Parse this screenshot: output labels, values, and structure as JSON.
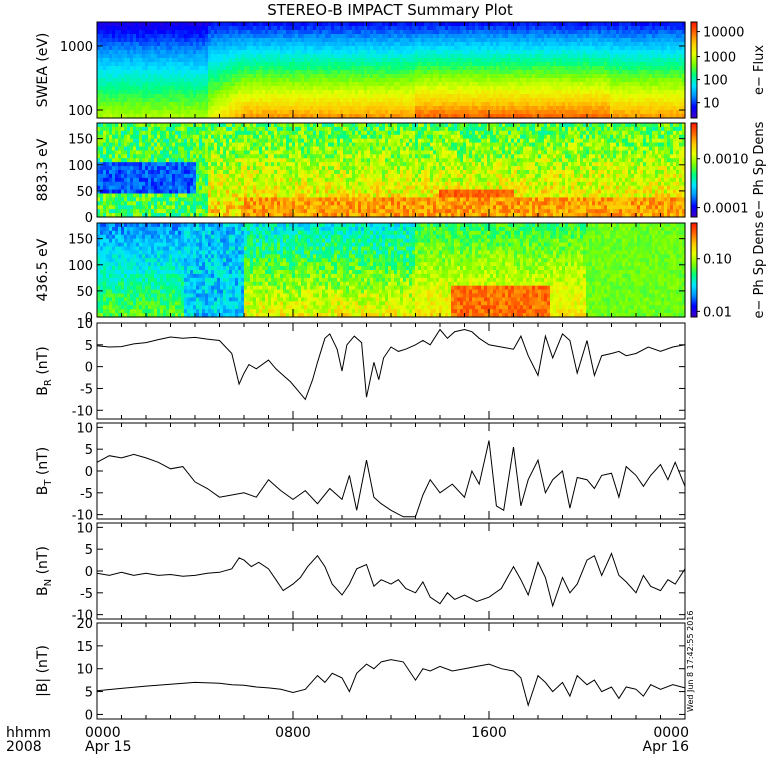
{
  "title": "STEREO-B IMPACT Summary Plot",
  "timestamp_stamp": "Wed Jun  8 17:42:55 2016",
  "time_axis": {
    "label_line1": "hhmm",
    "label_line2": "2008",
    "ticks": [
      {
        "t": 0,
        "hhmm": "0000",
        "date": "Apr 15"
      },
      {
        "t": 8,
        "hhmm": "0800",
        "date": ""
      },
      {
        "t": 16,
        "hhmm": "1600",
        "date": ""
      },
      {
        "t": 24,
        "hhmm": "0000",
        "date": "Apr 16"
      }
    ]
  },
  "colors": {
    "spectrogram_palette": [
      "#3f00c8",
      "#0000ff",
      "#0090ff",
      "#00e6ff",
      "#00ff80",
      "#7fff00",
      "#e6ff00",
      "#ffc800",
      "#ff6400",
      "#ff1400"
    ],
    "line": "#000000"
  },
  "chart_data": [
    {
      "id": "swea",
      "type": "heatmap",
      "ylabel": "SWEA (eV)",
      "yscale": "log",
      "yticks": [
        "100",
        "1000"
      ],
      "colorbar": {
        "label": "e− Flux",
        "scale": "log",
        "ticks": [
          "10",
          "100",
          "1000",
          "10000"
        ]
      },
      "description_rows": "energy",
      "x_hours": [
        0,
        2,
        4,
        5,
        6,
        8,
        10,
        12,
        14,
        16,
        18,
        20,
        22,
        24
      ]
    },
    {
      "id": "pad883",
      "type": "heatmap",
      "ylabel": "883.3 eV",
      "ylim": [
        0,
        180
      ],
      "yticks": [
        "0",
        "50",
        "100",
        "150"
      ],
      "colorbar": {
        "label": "e− Ph Sp Dens",
        "scale": "log",
        "ticks": [
          "0.0001",
          "0.0010"
        ]
      }
    },
    {
      "id": "pad436",
      "type": "heatmap",
      "ylabel": "436.5 eV",
      "ylim": [
        0,
        180
      ],
      "yticks": [
        "0",
        "50",
        "100",
        "150"
      ],
      "colorbar": {
        "label": "e− Ph Sp Dens",
        "scale": "log",
        "ticks": [
          "0.01",
          "0.10"
        ]
      }
    },
    {
      "id": "br",
      "type": "line",
      "ylabel": "B",
      "ylabel_sub": "R",
      "ylabel_unit": "(nT)",
      "ylim": [
        -12,
        10
      ],
      "yticks": [
        "-10",
        "-5",
        "0",
        "5",
        "10"
      ],
      "x": [
        0,
        0.5,
        1,
        1.5,
        2,
        2.5,
        3,
        3.5,
        4,
        4.5,
        5,
        5.5,
        5.8,
        6,
        6.2,
        6.5,
        7,
        7.3,
        7.6,
        7.9,
        8.2,
        8.5,
        8.8,
        9,
        9.3,
        9.5,
        9.8,
        10,
        10.2,
        10.5,
        10.8,
        11,
        11.3,
        11.5,
        11.7,
        12,
        12.3,
        12.6,
        13,
        13.3,
        13.6,
        14,
        14.3,
        14.6,
        15,
        15.3,
        15.6,
        16,
        16.5,
        17,
        17.3,
        17.6,
        18,
        18.3,
        18.6,
        19,
        19.3,
        19.6,
        20,
        20.3,
        20.6,
        21,
        21.3,
        21.6,
        22,
        22.5,
        23,
        23.5,
        24
      ],
      "y": [
        4.8,
        4.5,
        4.6,
        5.2,
        5.5,
        6.2,
        6.8,
        6.5,
        6.7,
        6.3,
        6.0,
        3.0,
        -4.0,
        -1.5,
        0.5,
        -0.5,
        1.5,
        -0.5,
        -2.0,
        -3.5,
        -5.5,
        -7.5,
        -3.0,
        1.0,
        6.5,
        7.5,
        4.0,
        -1.0,
        5.0,
        7.0,
        5.5,
        -7.0,
        1.0,
        -3.0,
        2.0,
        4.5,
        3.5,
        4.0,
        5.0,
        6.0,
        5.0,
        8.5,
        6.5,
        8.0,
        8.5,
        8.0,
        6.5,
        5.0,
        4.5,
        4.0,
        7.0,
        2.5,
        -2.0,
        7.0,
        2.0,
        7.5,
        6.0,
        -1.5,
        6.0,
        -2.0,
        2.5,
        3.0,
        3.5,
        2.5,
        3.0,
        4.5,
        3.5,
        4.5,
        5.0
      ]
    },
    {
      "id": "bt",
      "type": "line",
      "ylabel": "B",
      "ylabel_sub": "T",
      "ylabel_unit": "(nT)",
      "ylim": [
        -11,
        11
      ],
      "yticks": [
        "-10",
        "-5",
        "0",
        "5",
        "10"
      ],
      "x": [
        0,
        0.5,
        1,
        1.5,
        2,
        2.5,
        3,
        3.5,
        4,
        4.5,
        5,
        5.5,
        6,
        6.5,
        7,
        7.5,
        8,
        8.5,
        9,
        9.5,
        10,
        10.3,
        10.6,
        11,
        11.3,
        11.6,
        12,
        12.5,
        13,
        13.3,
        13.6,
        14,
        14.5,
        15,
        15.3,
        15.6,
        16,
        16.3,
        16.6,
        17,
        17.3,
        17.6,
        18,
        18.3,
        18.6,
        19,
        19.3,
        19.6,
        20,
        20.3,
        20.6,
        21,
        21.3,
        21.6,
        22,
        22.3,
        22.6,
        23,
        23.3,
        23.6,
        24
      ],
      "y": [
        2.0,
        3.5,
        3.0,
        3.8,
        3.0,
        2.0,
        0.5,
        1.0,
        -2.5,
        -4.0,
        -6.0,
        -5.5,
        -5.0,
        -6.0,
        -2.0,
        -4.5,
        -6.5,
        -4.5,
        -7.5,
        -4.0,
        -6.5,
        -1.0,
        -9.0,
        2.5,
        -6.0,
        -7.5,
        -9.0,
        -10.5,
        -10.5,
        -5.5,
        -2.0,
        -5.0,
        -3.0,
        -6.0,
        0.0,
        -3.0,
        7.0,
        -8.0,
        -9.0,
        5.5,
        -8.0,
        -2.0,
        2.5,
        -5.0,
        -2.0,
        0.0,
        -8.5,
        -1.5,
        -2.0,
        -4.0,
        -1.0,
        -0.5,
        -6.0,
        1.0,
        -1.0,
        -3.5,
        -1.0,
        1.5,
        -2.0,
        2.0,
        -3.5
      ]
    },
    {
      "id": "bn",
      "type": "line",
      "ylabel": "B",
      "ylabel_sub": "N",
      "ylabel_unit": "(nT)",
      "ylim": [
        -11,
        11
      ],
      "yticks": [
        "-10",
        "-5",
        "0",
        "5",
        "10"
      ],
      "x": [
        0,
        0.5,
        1,
        1.5,
        2,
        2.5,
        3,
        3.5,
        4,
        4.5,
        5,
        5.5,
        5.8,
        6,
        6.3,
        6.6,
        7,
        7.3,
        7.6,
        8,
        8.3,
        8.6,
        9,
        9.3,
        9.6,
        10,
        10.3,
        10.6,
        11,
        11.3,
        11.6,
        12,
        12.3,
        12.6,
        13,
        13.3,
        13.6,
        14,
        14.3,
        14.6,
        15,
        15.5,
        16,
        16.5,
        17,
        17.3,
        17.6,
        18,
        18.3,
        18.6,
        19,
        19.3,
        19.6,
        20,
        20.3,
        20.6,
        21,
        21.3,
        21.6,
        22,
        22.3,
        22.6,
        23,
        23.3,
        23.6,
        24
      ],
      "y": [
        -0.5,
        -1.0,
        -0.3,
        -1.0,
        -0.5,
        -1.0,
        -0.8,
        -1.2,
        -1.0,
        -0.5,
        -0.3,
        0.5,
        3.0,
        2.5,
        1.0,
        2.0,
        0.5,
        -2.0,
        -4.5,
        -3.0,
        -1.5,
        1.0,
        3.5,
        1.0,
        -3.0,
        -5.5,
        -3.0,
        0.5,
        1.5,
        -3.5,
        -2.0,
        -3.0,
        -2.0,
        -4.0,
        -5.0,
        -2.5,
        -6.0,
        -7.5,
        -5.0,
        -6.5,
        -5.5,
        -7.0,
        -6.0,
        -4.0,
        1.0,
        -2.0,
        -5.5,
        2.0,
        -1.5,
        -8.0,
        -1.5,
        -5.0,
        -3.0,
        2.5,
        3.5,
        -1.0,
        4.0,
        -1.0,
        -2.5,
        -5.0,
        -1.0,
        -3.5,
        -4.5,
        -2.0,
        -3.0,
        0.5
      ]
    },
    {
      "id": "bmag",
      "type": "line",
      "ylabel": "|B| (nT)",
      "ylim": [
        -1,
        20
      ],
      "yticks": [
        "0",
        "5",
        "10",
        "15",
        "20"
      ],
      "x": [
        0,
        1,
        2,
        3,
        4,
        5,
        5.5,
        6,
        6.5,
        7,
        7.5,
        8,
        8.5,
        9,
        9.3,
        9.6,
        10,
        10.3,
        10.6,
        11,
        11.3,
        11.6,
        12,
        12.5,
        13,
        13.3,
        13.6,
        14,
        14.5,
        15,
        15.5,
        16,
        16.5,
        17,
        17.3,
        17.6,
        18,
        18.3,
        18.6,
        19,
        19.3,
        19.6,
        20,
        20.3,
        20.6,
        21,
        21.3,
        21.6,
        22,
        22.3,
        22.6,
        23,
        23.5,
        24
      ],
      "y": [
        5.2,
        5.7,
        6.2,
        6.6,
        7.0,
        6.8,
        6.5,
        6.4,
        6.0,
        5.8,
        5.5,
        4.8,
        5.5,
        8.5,
        7.0,
        9.0,
        8.0,
        5.0,
        9.0,
        11.0,
        10.0,
        11.5,
        12.0,
        11.5,
        7.5,
        10.0,
        9.5,
        10.5,
        9.5,
        10.0,
        10.5,
        11.0,
        10.0,
        9.5,
        8.0,
        2.0,
        8.5,
        7.0,
        5.0,
        7.0,
        4.0,
        8.5,
        6.5,
        7.5,
        5.0,
        6.0,
        3.5,
        6.0,
        5.5,
        4.0,
        6.5,
        5.5,
        6.5,
        5.8
      ]
    }
  ]
}
